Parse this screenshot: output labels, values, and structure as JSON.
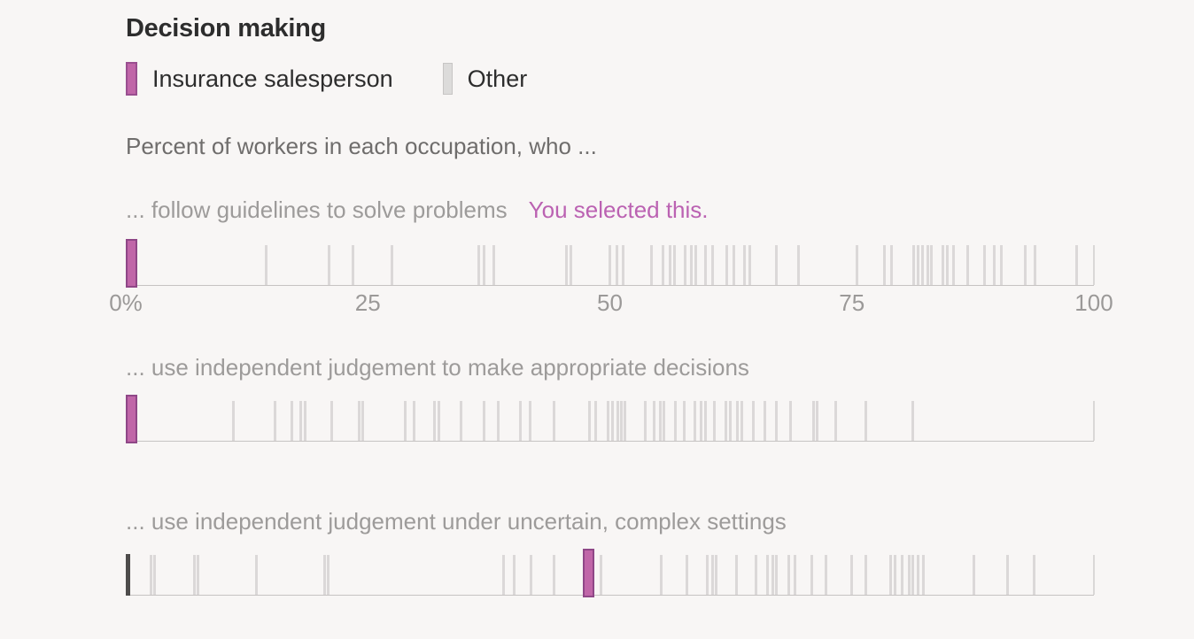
{
  "header": {
    "title": "Decision making"
  },
  "legend": {
    "items": [
      {
        "label": "Insurance salesperson",
        "color": "#c066a8",
        "border": "#8f4787"
      },
      {
        "label": "Other",
        "color": "#dcdbda",
        "border": "#c7c5c4"
      }
    ]
  },
  "subtitle": "Percent of workers in each occupation, who ...",
  "colors": {
    "background": "#f8f6f5",
    "selected_fill": "#c066a8",
    "selected_border": "#8f4787",
    "selected_text": "#bb62b2",
    "other_bar": "#d7d5d4",
    "dark_marker": "#4e4c4b",
    "axis_text": "#9b9998"
  },
  "chart_data": [
    {
      "type": "strip",
      "label": "... follow guidelines to solve problems",
      "note": "You selected this.",
      "axis": {
        "min": 0,
        "max": 100,
        "tick_labels": [
          "0%",
          "25",
          "50",
          "75",
          "100"
        ],
        "tick_values": [
          0,
          25,
          50,
          75,
          100
        ]
      },
      "series": [
        {
          "name": "Insurance salesperson",
          "values": [
            0
          ]
        },
        {
          "name": "Other",
          "values": [
            14.5,
            21,
            23.5,
            27.5,
            36.5,
            37,
            38,
            45.5,
            46,
            50,
            50.7,
            51.4,
            54.3,
            55.5,
            56.2,
            56.7,
            57.8,
            58.4,
            58.9,
            59.9,
            60.6,
            62.1,
            62.8,
            63.9,
            64.5,
            67.2,
            69.5,
            75.5,
            78.4,
            79.1,
            81.4,
            81.8,
            82.3,
            82.8,
            83.2,
            84.4,
            84.9,
            85.5,
            87,
            88.7,
            89.7,
            90.4,
            92.9,
            93.9,
            98.2
          ]
        }
      ]
    },
    {
      "type": "strip",
      "label": "... use independent judgement to make appropriate decisions",
      "axis": {
        "min": 0,
        "max": 100
      },
      "series": [
        {
          "name": "Insurance salesperson",
          "values": [
            0
          ]
        },
        {
          "name": "Other",
          "values": [
            11.1,
            15.4,
            17.2,
            18.1,
            18.5,
            21.3,
            24.1,
            24.5,
            28.9,
            29.8,
            31.9,
            32.3,
            34.6,
            37,
            38.5,
            40.8,
            41.8,
            44.2,
            47.9,
            48.5,
            49.8,
            50.3,
            50.8,
            51.2,
            51.6,
            53.7,
            54.6,
            55.2,
            55.6,
            56.8,
            57.7,
            58.8,
            59.4,
            59.9,
            60.8,
            62,
            62.4,
            63.2,
            63.6,
            64.8,
            66,
            67.2,
            68.7,
            71,
            71.4,
            73.3,
            76.4,
            81.3
          ]
        }
      ]
    },
    {
      "type": "strip",
      "label": "... use independent judgement under uncertain, complex settings",
      "axis": {
        "min": 0,
        "max": 100
      },
      "zero_marker": 0,
      "series": [
        {
          "name": "Insurance salesperson",
          "values": [
            47.8
          ]
        },
        {
          "name": "Other",
          "values": [
            2.6,
            3,
            7.1,
            7.5,
            13.5,
            20.5,
            20.9,
            39,
            40.1,
            41.9,
            44.2,
            49.1,
            55.3,
            58,
            60.1,
            60.6,
            61,
            63.1,
            65.1,
            66.3,
            66.8,
            67.2,
            68.5,
            69.1,
            70.9,
            72.3,
            75,
            76.4,
            79,
            79.5,
            80.2,
            80.9,
            81.3,
            81.8,
            82.4,
            87.6,
            91.1,
            93.8
          ]
        }
      ]
    }
  ]
}
